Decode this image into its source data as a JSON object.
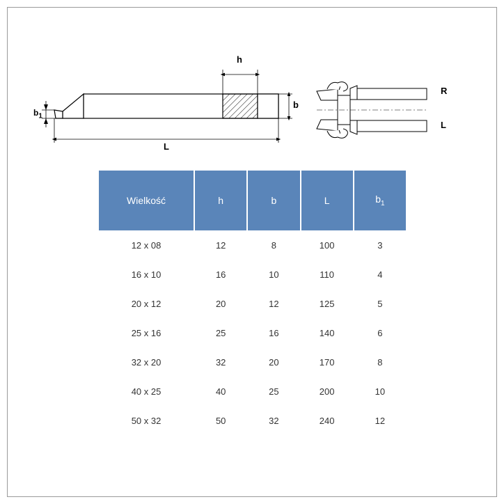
{
  "diagram": {
    "labels": {
      "h": "h",
      "b": "b",
      "L": "L",
      "b1": "b1",
      "R": "R",
      "Lside": "L"
    },
    "colors": {
      "stroke": "#000000",
      "hatch": "#000000",
      "fill": "#ffffff",
      "arrow": "#000000"
    }
  },
  "table": {
    "header_bg": "#5a85b9",
    "header_fg": "#ffffff",
    "columns": [
      "Wielkość",
      "h",
      "b",
      "L",
      "b1"
    ],
    "rows": [
      [
        "12 x 08",
        "12",
        "8",
        "100",
        "3"
      ],
      [
        "16 x 10",
        "16",
        "10",
        "110",
        "4"
      ],
      [
        "20 x 12",
        "20",
        "12",
        "125",
        "5"
      ],
      [
        "25 x 16",
        "25",
        "16",
        "140",
        "6"
      ],
      [
        "32 x 20",
        "32",
        "20",
        "170",
        "8"
      ],
      [
        "40 x 25",
        "40",
        "25",
        "200",
        "10"
      ],
      [
        "50 x 32",
        "50",
        "32",
        "240",
        "12"
      ]
    ]
  }
}
